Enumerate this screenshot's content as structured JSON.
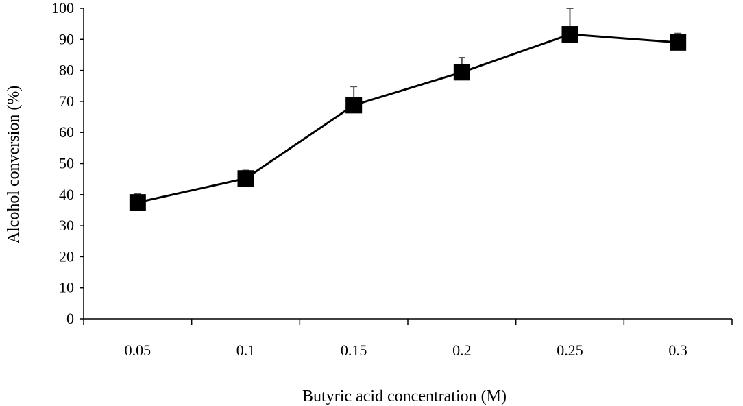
{
  "chart_data": {
    "type": "line",
    "title": "",
    "xlabel": "Butyric acid concentration (M)",
    "ylabel": "Alcohol conversion (%)",
    "categories": [
      "0.05",
      "0.1",
      "0.15",
      "0.2",
      "0.25",
      "0.3"
    ],
    "ylim": [
      0,
      100
    ],
    "yticks": [
      0,
      10,
      20,
      30,
      40,
      50,
      60,
      70,
      80,
      90,
      100
    ],
    "grid": false,
    "legend": "none",
    "marker": "square",
    "color": "#000000",
    "series": [
      {
        "values": [
          37.5,
          45.2,
          68.8,
          79.4,
          91.6,
          89.0
        ],
        "error_upper": [
          2.8,
          2.6,
          6.0,
          4.7,
          8.4,
          2.9
        ]
      }
    ]
  }
}
